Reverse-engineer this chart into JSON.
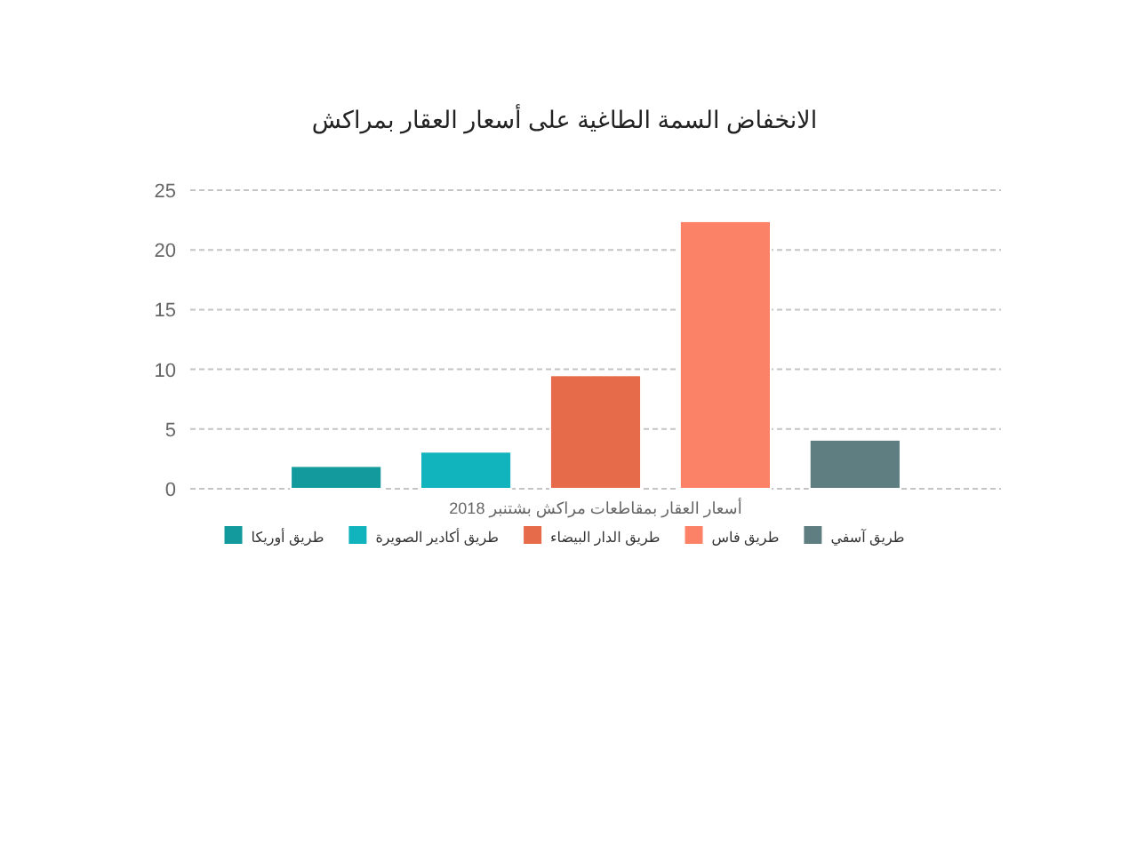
{
  "chart_data": {
    "type": "bar",
    "title": "الانخفاض السمة الطاغية على أسعار العقار بمراكش",
    "xlabel": "أسعار العقار بمقاطعات مراكش بشتنبر 2018",
    "categories": [
      null
    ],
    "series": [
      {
        "name": "طريق أوريكا",
        "color": "#129a9d",
        "values": [
          1.9
        ]
      },
      {
        "name": "طريق أكادير الصويرة",
        "color": "#11b4bd",
        "values": [
          3.1
        ]
      },
      {
        "name": "طريق الدار البيضاء",
        "color": "#e56b4b",
        "values": [
          9.5
        ]
      },
      {
        "name": "طريق فاس",
        "color": "#fb8266",
        "values": [
          22.4
        ]
      },
      {
        "name": "طريق آسفي",
        "color": "#5f7e82",
        "values": [
          4.1
        ]
      }
    ],
    "ylim": [
      0,
      25
    ],
    "yticks": [
      0,
      5,
      10,
      15,
      20,
      25
    ],
    "grid": "y",
    "legend": "bottom"
  }
}
